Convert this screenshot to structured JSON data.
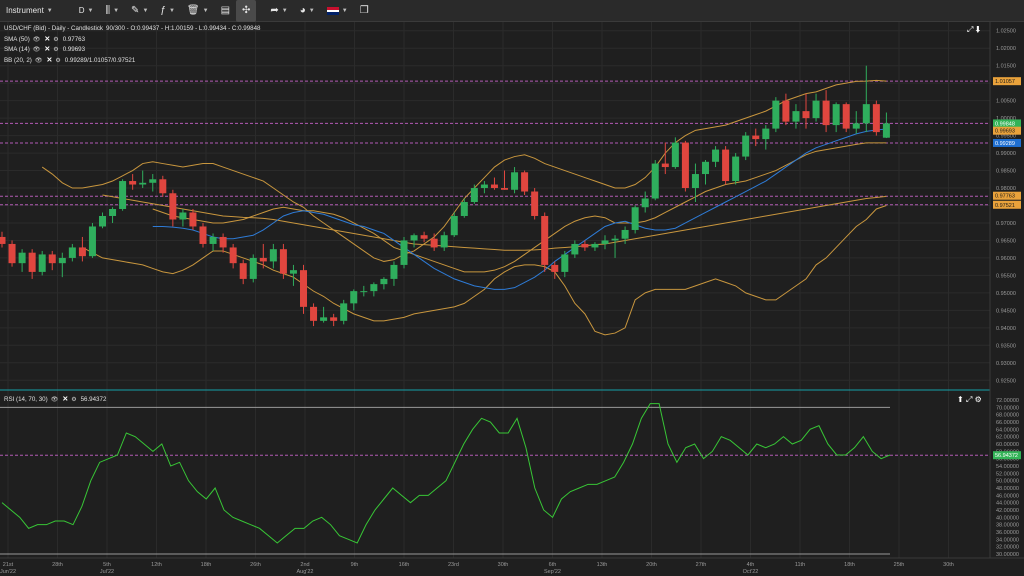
{
  "toolbar": {
    "instrument_label": "Instrument",
    "timeframe_label": "D",
    "colors": {
      "bg": "#2a2a2a",
      "active": "#4a4a4a"
    }
  },
  "main_legend": {
    "title": "USD/CHF (Bid) - Daily - Candlestick",
    "ohlc": "90/300 - O:0.99437 - H:1.00159 - L:0.99434 - C:0.99848",
    "sma50_label": "SMA (50)",
    "sma50_value": "0.97763",
    "sma14_label": "SMA (14)",
    "sma14_value": "0.99693",
    "bb_label": "BB (20, 2)",
    "bb_value": "0.99289/1.01057/0.97521"
  },
  "rsi_legend": {
    "label": "RSI (14, 70, 30)",
    "value": "56.94372"
  },
  "price_axis": {
    "ticks": [
      "1.02500",
      "1.02000",
      "1.01500",
      "1.01000",
      "1.00500",
      "1.00000",
      "0.99500",
      "0.99000",
      "0.98500",
      "0.98000",
      "0.97500",
      "0.97000",
      "0.96500",
      "0.96000",
      "0.95500",
      "0.95000",
      "0.94500",
      "0.94000",
      "0.93500",
      "0.93000",
      "0.92500"
    ],
    "tags": [
      {
        "text": "1.01057",
        "price": 1.01057,
        "color": "#e9a23b",
        "textColor": "#1a1a1a"
      },
      {
        "text": "0.99848",
        "price": 0.99848,
        "color": "#33b357",
        "textColor": "#ffffff"
      },
      {
        "text": "0.99693",
        "price": 0.9964,
        "color": "#e9a23b",
        "textColor": "#1a1a1a"
      },
      {
        "text": "0.99289",
        "price": 0.99289,
        "color": "#1f6fd1",
        "textColor": "#ffffff"
      },
      {
        "text": "0.97763",
        "price": 0.9778,
        "color": "#e9a23b",
        "textColor": "#1a1a1a"
      },
      {
        "text": "0.97521",
        "price": 0.97521,
        "color": "#e9a23b",
        "textColor": "#1a1a1a"
      }
    ]
  },
  "rsi_axis": {
    "ticks": [
      "72.00000",
      "70.00000",
      "68.00000",
      "66.00000",
      "64.00000",
      "62.00000",
      "60.00000",
      "58.00000",
      "56.00000",
      "54.00000",
      "52.00000",
      "50.00000",
      "48.00000",
      "46.00000",
      "44.00000",
      "42.00000",
      "40.00000",
      "38.00000",
      "36.00000",
      "34.00000",
      "32.00000",
      "30.00000"
    ],
    "tag": {
      "text": "56.94372",
      "value": 56.94372,
      "color": "#33b357"
    }
  },
  "time_axis": {
    "labels": [
      {
        "text": "21st",
        "sub": "Jun'22"
      },
      {
        "text": "28th",
        "sub": ""
      },
      {
        "text": "5th",
        "sub": "Jul'22"
      },
      {
        "text": "12th",
        "sub": ""
      },
      {
        "text": "18th",
        "sub": ""
      },
      {
        "text": "26th",
        "sub": ""
      },
      {
        "text": "2nd",
        "sub": "Aug'22"
      },
      {
        "text": "9th",
        "sub": ""
      },
      {
        "text": "16th",
        "sub": ""
      },
      {
        "text": "23rd",
        "sub": ""
      },
      {
        "text": "30th",
        "sub": ""
      },
      {
        "text": "6th",
        "sub": "Sep'22"
      },
      {
        "text": "13th",
        "sub": ""
      },
      {
        "text": "20th",
        "sub": ""
      },
      {
        "text": "27th",
        "sub": ""
      },
      {
        "text": "4th",
        "sub": "Oct'22"
      },
      {
        "text": "11th",
        "sub": ""
      },
      {
        "text": "18th",
        "sub": ""
      },
      {
        "text": "25th",
        "sub": ""
      },
      {
        "text": "30th",
        "sub": ""
      }
    ]
  },
  "colors": {
    "bull": "#2fae5d",
    "bear": "#e0463f",
    "bb": "#c8963e",
    "sma50": "#c8963e",
    "sma14": "#2e7bd6",
    "rsi": "#38c636",
    "level": "#b25ab4"
  },
  "chart_data": {
    "type": "candlestick",
    "title": "USD/CHF (Bid) - Daily - Candlestick",
    "price_range": [
      0.9225,
      1.0275
    ],
    "rsi_range": [
      30,
      72
    ],
    "level_lines": [
      1.01057,
      0.99848,
      0.99289,
      0.97763,
      0.97521
    ],
    "candles": [
      [
        0.966,
        0.9675,
        0.963,
        0.964
      ],
      [
        0.964,
        0.965,
        0.9575,
        0.9585
      ],
      [
        0.9585,
        0.9625,
        0.956,
        0.9615
      ],
      [
        0.9615,
        0.9625,
        0.954,
        0.956
      ],
      [
        0.956,
        0.962,
        0.955,
        0.961
      ],
      [
        0.961,
        0.962,
        0.9565,
        0.9585
      ],
      [
        0.9585,
        0.9615,
        0.9545,
        0.96
      ],
      [
        0.96,
        0.964,
        0.959,
        0.963
      ],
      [
        0.963,
        0.966,
        0.959,
        0.9605
      ],
      [
        0.9605,
        0.97,
        0.96,
        0.969
      ],
      [
        0.969,
        0.973,
        0.9685,
        0.972
      ],
      [
        0.972,
        0.9745,
        0.97,
        0.974
      ],
      [
        0.974,
        0.9825,
        0.9735,
        0.982
      ],
      [
        0.982,
        0.984,
        0.9795,
        0.981
      ],
      [
        0.981,
        0.985,
        0.98,
        0.9815
      ],
      [
        0.9815,
        0.984,
        0.979,
        0.9825
      ],
      [
        0.9825,
        0.9835,
        0.9775,
        0.9785
      ],
      [
        0.9785,
        0.9795,
        0.969,
        0.971
      ],
      [
        0.971,
        0.974,
        0.969,
        0.973
      ],
      [
        0.973,
        0.974,
        0.968,
        0.969
      ],
      [
        0.969,
        0.97,
        0.963,
        0.964
      ],
      [
        0.964,
        0.967,
        0.962,
        0.966
      ],
      [
        0.966,
        0.967,
        0.9615,
        0.963
      ],
      [
        0.963,
        0.964,
        0.957,
        0.9585
      ],
      [
        0.9585,
        0.9595,
        0.9525,
        0.954
      ],
      [
        0.954,
        0.961,
        0.953,
        0.96
      ],
      [
        0.96,
        0.964,
        0.957,
        0.959
      ],
      [
        0.959,
        0.964,
        0.957,
        0.9625
      ],
      [
        0.9625,
        0.964,
        0.954,
        0.9555
      ],
      [
        0.9555,
        0.958,
        0.952,
        0.9565
      ],
      [
        0.9565,
        0.958,
        0.944,
        0.946
      ],
      [
        0.946,
        0.947,
        0.9405,
        0.942
      ],
      [
        0.942,
        0.946,
        0.9415,
        0.943
      ],
      [
        0.943,
        0.944,
        0.9405,
        0.942
      ],
      [
        0.942,
        0.948,
        0.941,
        0.947
      ],
      [
        0.947,
        0.951,
        0.945,
        0.9505
      ],
      [
        0.9505,
        0.952,
        0.949,
        0.9505
      ],
      [
        0.9505,
        0.953,
        0.949,
        0.9525
      ],
      [
        0.9525,
        0.9545,
        0.951,
        0.954
      ],
      [
        0.954,
        0.959,
        0.952,
        0.958
      ],
      [
        0.958,
        0.966,
        0.957,
        0.965
      ],
      [
        0.965,
        0.967,
        0.963,
        0.9665
      ],
      [
        0.9665,
        0.9675,
        0.9645,
        0.9655
      ],
      [
        0.9655,
        0.967,
        0.962,
        0.963
      ],
      [
        0.963,
        0.9675,
        0.962,
        0.9665
      ],
      [
        0.9665,
        0.973,
        0.966,
        0.972
      ],
      [
        0.972,
        0.977,
        0.9715,
        0.976
      ],
      [
        0.976,
        0.981,
        0.9755,
        0.98
      ],
      [
        0.98,
        0.982,
        0.9785,
        0.981
      ],
      [
        0.981,
        0.983,
        0.9795,
        0.98
      ],
      [
        0.98,
        0.985,
        0.9795,
        0.9795
      ],
      [
        0.9795,
        0.986,
        0.9785,
        0.9845
      ],
      [
        0.9845,
        0.985,
        0.978,
        0.979
      ],
      [
        0.979,
        0.98,
        0.971,
        0.972
      ],
      [
        0.972,
        0.973,
        0.956,
        0.958
      ],
      [
        0.958,
        0.959,
        0.954,
        0.956
      ],
      [
        0.956,
        0.962,
        0.9545,
        0.961
      ],
      [
        0.961,
        0.965,
        0.96,
        0.964
      ],
      [
        0.964,
        0.965,
        0.962,
        0.963
      ],
      [
        0.963,
        0.9645,
        0.962,
        0.964
      ],
      [
        0.964,
        0.9665,
        0.9625,
        0.965
      ],
      [
        0.965,
        0.9665,
        0.96,
        0.9655
      ],
      [
        0.9655,
        0.969,
        0.964,
        0.968
      ],
      [
        0.968,
        0.975,
        0.967,
        0.9745
      ],
      [
        0.9745,
        0.979,
        0.973,
        0.977
      ],
      [
        0.977,
        0.988,
        0.9765,
        0.987
      ],
      [
        0.987,
        0.993,
        0.984,
        0.986
      ],
      [
        0.986,
        0.9945,
        0.9855,
        0.993
      ],
      [
        0.993,
        0.9935,
        0.979,
        0.98
      ],
      [
        0.98,
        0.987,
        0.976,
        0.984
      ],
      [
        0.984,
        0.988,
        0.981,
        0.9875
      ],
      [
        0.9875,
        0.992,
        0.986,
        0.991
      ],
      [
        0.991,
        0.992,
        0.981,
        0.982
      ],
      [
        0.982,
        0.99,
        0.981,
        0.989
      ],
      [
        0.989,
        0.996,
        0.988,
        0.995
      ],
      [
        0.995,
        0.997,
        0.992,
        0.994
      ],
      [
        0.994,
        0.998,
        0.991,
        0.997
      ],
      [
        0.997,
        1.006,
        0.996,
        1.005
      ],
      [
        1.005,
        1.007,
        0.998,
        0.999
      ],
      [
        0.999,
        1.004,
        0.997,
        1.002
      ],
      [
        1.002,
        1.007,
        0.997,
        1.0
      ],
      [
        1.0,
        1.007,
        0.999,
        1.005
      ],
      [
        1.005,
        1.008,
        0.996,
        0.998
      ],
      [
        0.998,
        1.0045,
        0.996,
        1.004
      ],
      [
        1.004,
        1.0045,
        0.996,
        0.997
      ],
      [
        0.997,
        1.002,
        0.9955,
        0.9985
      ],
      [
        0.9985,
        1.015,
        0.996,
        1.004
      ],
      [
        1.004,
        1.005,
        0.995,
        0.996
      ],
      [
        0.9944,
        1.0016,
        0.9943,
        0.9985
      ]
    ],
    "bb_upper": [
      0.986,
      0.984,
      0.9815,
      0.98,
      0.98,
      0.9805,
      0.981,
      0.982,
      0.9835,
      0.985,
      0.987,
      0.9875,
      0.987,
      0.9865,
      0.986,
      0.9865,
      0.987,
      0.987,
      0.986,
      0.985,
      0.984,
      0.983,
      0.982,
      0.98,
      0.978,
      0.976,
      0.9745,
      0.972,
      0.97,
      0.968,
      0.966,
      0.964,
      0.962,
      0.96,
      0.959,
      0.9595,
      0.961,
      0.962,
      0.964,
      0.966,
      0.969,
      0.973,
      0.977,
      0.98,
      0.983,
      0.986,
      0.988,
      0.989,
      0.9895,
      0.9885,
      0.987,
      0.986,
      0.985,
      0.984,
      0.983,
      0.982,
      0.981,
      0.98,
      0.98,
      0.981,
      0.983,
      0.986,
      0.99,
      0.993,
      0.995,
      0.9965,
      0.997,
      0.9975,
      0.998,
      0.999,
      1.0,
      1.001,
      1.002,
      1.0035,
      1.005,
      1.006,
      1.007,
      1.0075,
      1.0085,
      1.0095,
      1.01,
      1.0105,
      1.0106,
      1.0108,
      1.0106
    ],
    "bb_mid": [
      0.974,
      0.973,
      0.972,
      0.9715,
      0.971,
      0.9705,
      0.97,
      0.97,
      0.9705,
      0.971,
      0.972,
      0.973,
      0.974,
      0.9745,
      0.974,
      0.9735,
      0.9735,
      0.973,
      0.9725,
      0.9715,
      0.97,
      0.9685,
      0.967,
      0.965,
      0.963,
      0.962,
      0.961,
      0.96,
      0.959,
      0.958,
      0.957,
      0.956,
      0.956,
      0.956,
      0.9565,
      0.9575,
      0.959,
      0.961,
      0.963,
      0.965,
      0.967,
      0.969,
      0.9705,
      0.9715,
      0.972,
      0.9715,
      0.97,
      0.97,
      0.97,
      0.9705,
      0.9715,
      0.973,
      0.9745,
      0.976,
      0.9775,
      0.979,
      0.98,
      0.981,
      0.9815,
      0.982,
      0.983,
      0.984,
      0.985,
      0.9865,
      0.988,
      0.9895,
      0.9905,
      0.991,
      0.9915,
      0.992,
      0.9925,
      0.9929,
      0.9929,
      0.9929
    ],
    "bb_lower": [
      0.963,
      0.9615,
      0.96,
      0.9595,
      0.959,
      0.9585,
      0.958,
      0.957,
      0.956,
      0.9555,
      0.9565,
      0.958,
      0.96,
      0.962,
      0.962,
      0.961,
      0.96,
      0.959,
      0.958,
      0.9565,
      0.9555,
      0.9545,
      0.9525,
      0.9505,
      0.949,
      0.947,
      0.9455,
      0.944,
      0.943,
      0.942,
      0.942,
      0.9425,
      0.943,
      0.944,
      0.9445,
      0.945,
      0.9455,
      0.946,
      0.947,
      0.949,
      0.951,
      0.954,
      0.956,
      0.9575,
      0.958,
      0.958,
      0.9575,
      0.956,
      0.952,
      0.947,
      0.944,
      0.939,
      0.938,
      0.9385,
      0.94,
      0.948,
      0.95,
      0.951,
      0.951,
      0.951,
      0.951,
      0.952,
      0.953,
      0.954,
      0.953,
      0.952,
      0.95,
      0.949,
      0.948,
      0.948,
      0.95,
      0.952,
      0.954,
      0.958,
      0.96,
      0.963,
      0.966,
      0.969,
      0.971,
      0.974,
      0.975
    ],
    "sma50": [
      0.978,
      0.9775,
      0.977,
      0.9765,
      0.976,
      0.9755,
      0.975,
      0.9745,
      0.974,
      0.9735,
      0.973,
      0.9725,
      0.972,
      0.9718,
      0.9716,
      0.9715,
      0.9713,
      0.971,
      0.9705,
      0.97,
      0.9695,
      0.969,
      0.9685,
      0.968,
      0.9675,
      0.967,
      0.9665,
      0.966,
      0.9655,
      0.965,
      0.9645,
      0.964,
      0.9638,
      0.9636,
      0.9634,
      0.9632,
      0.963,
      0.9628,
      0.9626,
      0.9624,
      0.9622,
      0.9622,
      0.9622,
      0.9623,
      0.9625,
      0.9628,
      0.963,
      0.9632,
      0.9635,
      0.9638,
      0.964,
      0.9645,
      0.965,
      0.9655,
      0.966,
      0.9665,
      0.967,
      0.9675,
      0.968,
      0.9685,
      0.969,
      0.9695,
      0.97,
      0.9705,
      0.971,
      0.9715,
      0.972,
      0.9725,
      0.973,
      0.9735,
      0.974,
      0.9745,
      0.975,
      0.9755,
      0.976,
      0.9765,
      0.977,
      0.9773,
      0.9776
    ],
    "sma14": [
      0.969,
      0.969,
      0.9688,
      0.9685,
      0.968,
      0.967,
      0.966,
      0.9655,
      0.9655,
      0.966,
      0.9665,
      0.968,
      0.97,
      0.972,
      0.973,
      0.9735,
      0.973,
      0.9725,
      0.9715,
      0.9705,
      0.9695,
      0.969,
      0.968,
      0.967,
      0.965,
      0.963,
      0.961,
      0.959,
      0.957,
      0.9555,
      0.954,
      0.953,
      0.952,
      0.9515,
      0.951,
      0.951,
      0.9515,
      0.953,
      0.9545,
      0.9565,
      0.959,
      0.961,
      0.963,
      0.965,
      0.967,
      0.969,
      0.97,
      0.9705,
      0.9695,
      0.9685,
      0.968,
      0.968,
      0.9685,
      0.97,
      0.9715,
      0.973,
      0.9745,
      0.976,
      0.9775,
      0.979,
      0.9805,
      0.982,
      0.984,
      0.986,
      0.988,
      0.99,
      0.9915,
      0.9925,
      0.9935,
      0.9945,
      0.9955,
      0.9962,
      0.9966,
      0.9969
    ],
    "rsi": [
      44,
      42,
      40,
      37,
      38,
      38,
      39,
      39,
      38,
      43,
      50,
      55,
      56,
      57,
      63,
      62,
      60,
      58,
      60,
      54,
      55,
      50,
      47,
      45,
      48,
      42,
      40,
      39,
      38,
      37,
      35,
      33,
      35,
      37,
      37,
      39,
      40,
      38,
      35,
      34,
      33,
      38,
      42,
      45,
      48,
      46,
      44,
      46,
      46,
      48,
      50,
      55,
      60,
      64,
      67,
      66,
      63,
      63,
      67,
      59,
      48,
      42,
      40,
      45,
      47,
      48,
      49,
      49,
      50,
      51,
      55,
      60,
      67,
      71,
      71,
      60,
      55,
      59,
      60,
      56,
      58,
      62,
      61,
      59,
      57,
      60,
      59,
      60,
      62,
      60,
      61,
      64,
      65,
      60,
      57,
      57,
      59,
      62,
      58,
      56,
      57
    ]
  }
}
